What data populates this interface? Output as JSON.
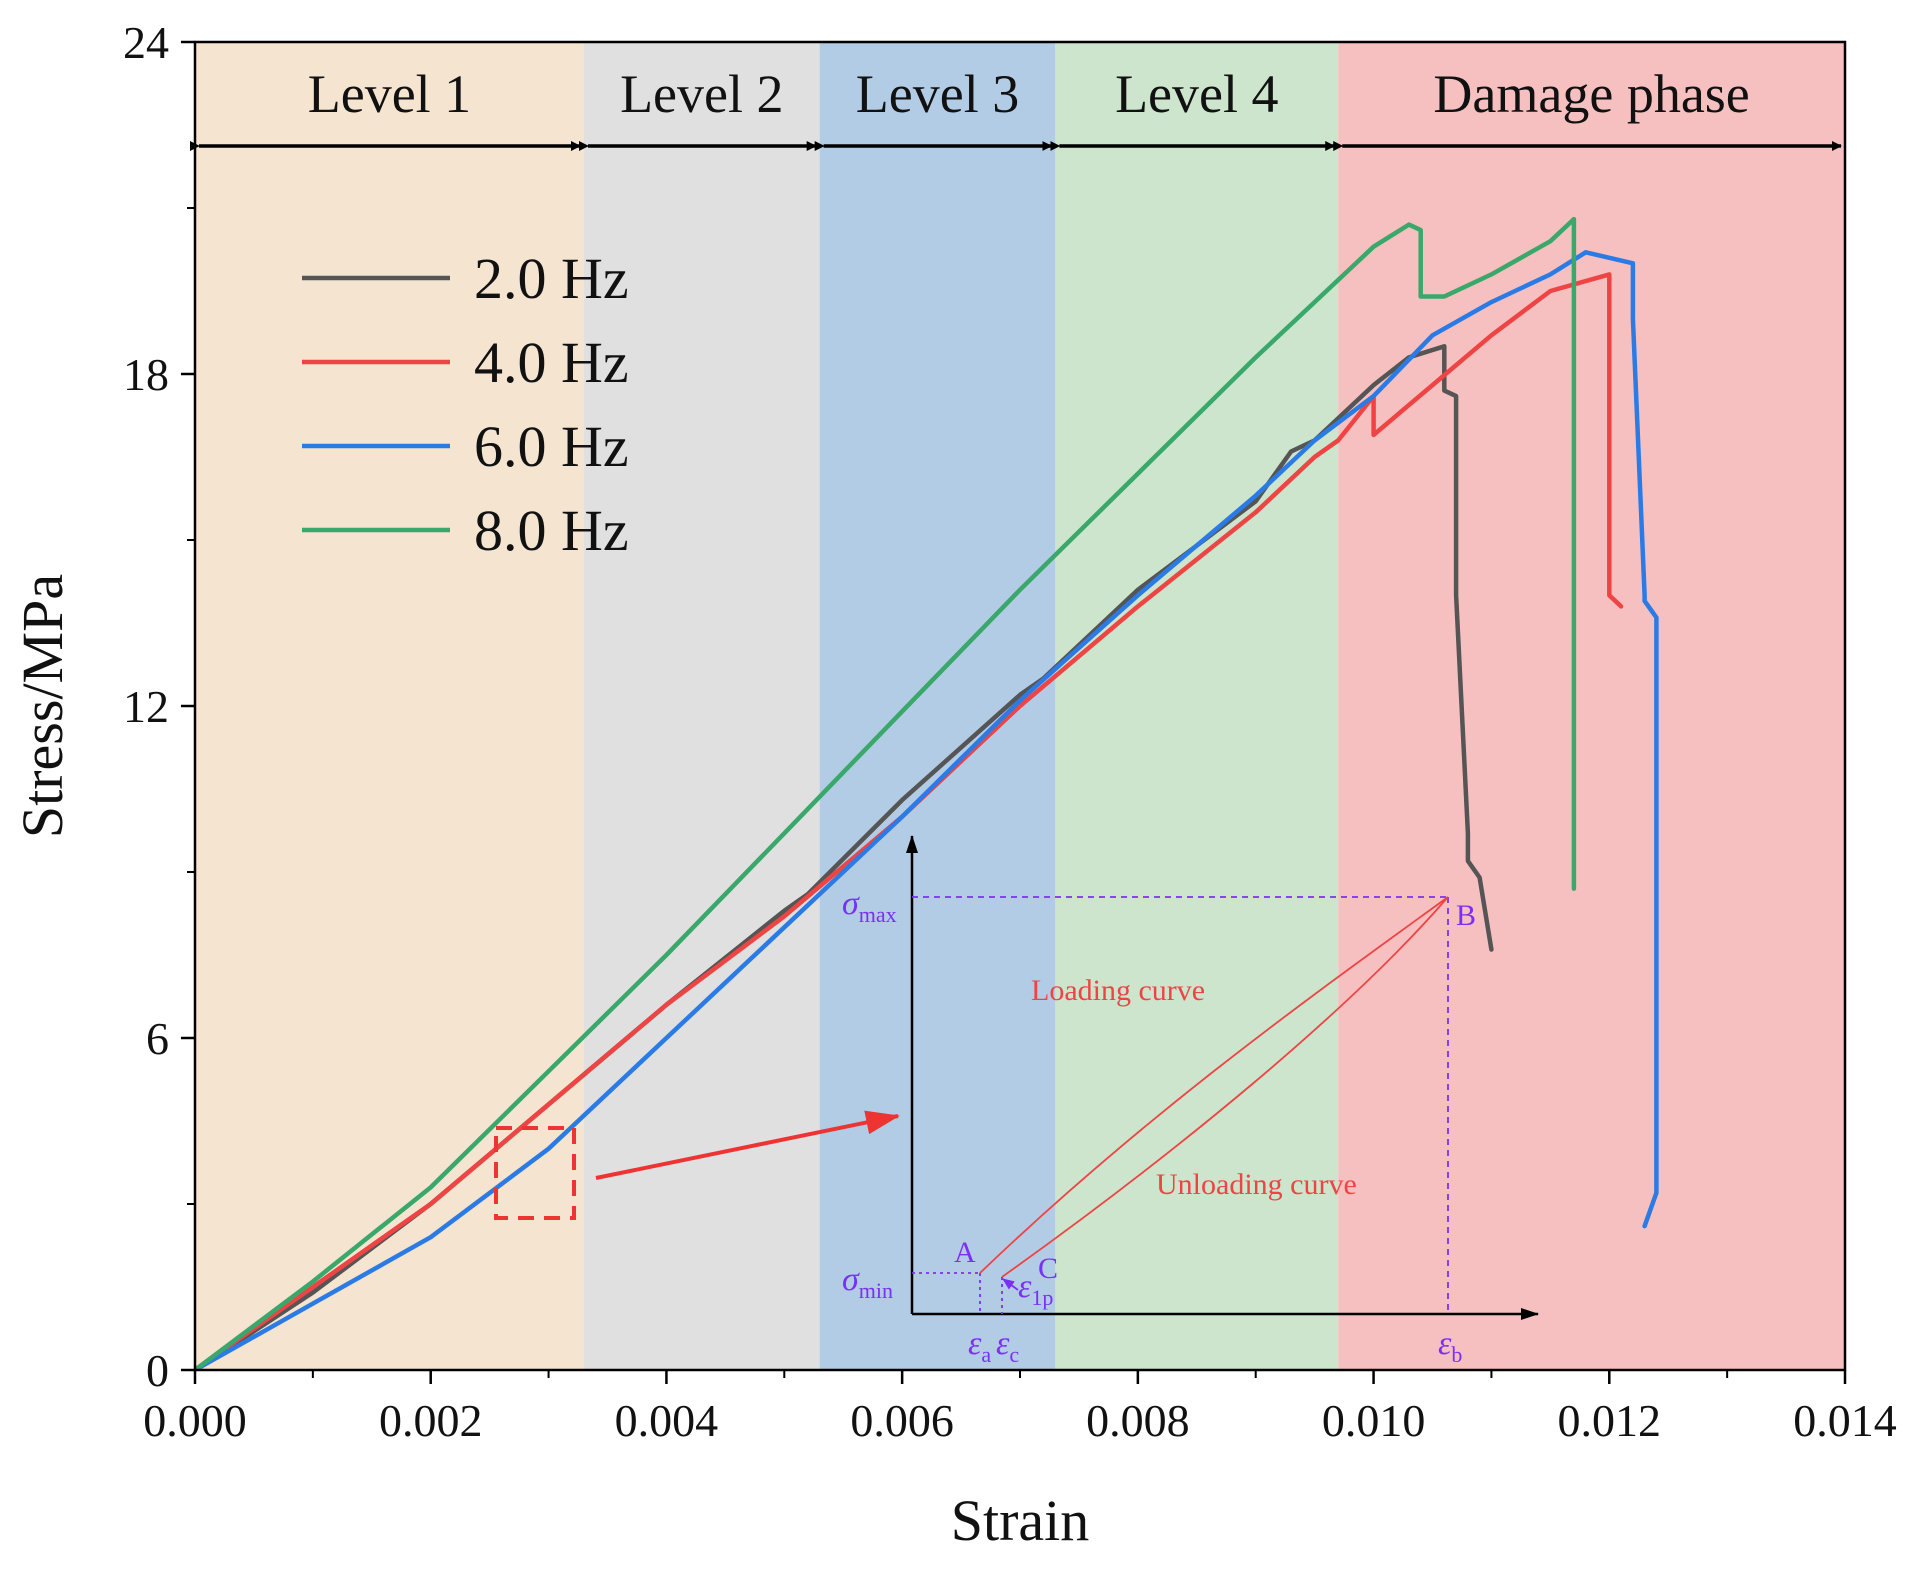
{
  "chart_data": {
    "type": "line",
    "title": "",
    "xlabel": "Strain",
    "ylabel": "Stress/MPa",
    "xlim": [
      0,
      0.014
    ],
    "ylim": [
      0,
      24
    ],
    "xticks": [
      "0.000",
      "0.002",
      "0.004",
      "0.006",
      "0.008",
      "0.010",
      "0.012",
      "0.014"
    ],
    "yticks": [
      "0",
      "6",
      "12",
      "18",
      "24"
    ],
    "xtick_values": [
      0,
      0.002,
      0.004,
      0.006,
      0.008,
      0.01,
      0.012,
      0.014
    ],
    "ytick_values": [
      0,
      6,
      12,
      18,
      24
    ],
    "grid": false,
    "legend_position": "top-left",
    "phases": [
      {
        "name": "Level 1",
        "start": 0.0,
        "end": 0.0033,
        "color": "#f5e4cf"
      },
      {
        "name": "Level 2",
        "start": 0.0033,
        "end": 0.0053,
        "color": "#e0e0e0"
      },
      {
        "name": "Level 3",
        "start": 0.0053,
        "end": 0.0073,
        "color": "#b3cce6"
      },
      {
        "name": "Level 4",
        "start": 0.0073,
        "end": 0.0097,
        "color": "#cce5cc"
      },
      {
        "name": "Damage phase",
        "start": 0.0097,
        "end": 0.014,
        "color": "#f7c0c0"
      }
    ],
    "series": [
      {
        "name": "2.0 Hz",
        "color": "#555555",
        "x": [
          0,
          0.001,
          0.002,
          0.003,
          0.004,
          0.005,
          0.0052,
          0.006,
          0.007,
          0.0072,
          0.008,
          0.009,
          0.0093,
          0.0095,
          0.01,
          0.0103,
          0.0106,
          0.0106,
          0.0107,
          0.0107,
          0.0108,
          0.0108,
          0.0109,
          0.011
        ],
        "y": [
          0,
          1.4,
          3.0,
          4.8,
          6.6,
          8.3,
          8.6,
          10.3,
          12.2,
          12.5,
          14.1,
          15.7,
          16.6,
          16.8,
          17.8,
          18.3,
          18.5,
          17.7,
          17.6,
          14.0,
          9.7,
          9.2,
          8.9,
          7.6
        ]
      },
      {
        "name": "4.0 Hz",
        "color": "#ee4444",
        "x": [
          0,
          0.001,
          0.002,
          0.003,
          0.004,
          0.005,
          0.006,
          0.007,
          0.008,
          0.009,
          0.0095,
          0.0097,
          0.01,
          0.01,
          0.0105,
          0.011,
          0.0115,
          0.012,
          0.012,
          0.0121
        ],
        "y": [
          0,
          1.5,
          3.0,
          4.8,
          6.6,
          8.2,
          10.0,
          12.0,
          13.8,
          15.5,
          16.5,
          16.8,
          17.6,
          16.9,
          17.8,
          18.7,
          19.5,
          19.8,
          14.0,
          13.8
        ]
      },
      {
        "name": "6.0 Hz",
        "color": "#2b7be6",
        "x": [
          0,
          0.001,
          0.002,
          0.003,
          0.004,
          0.005,
          0.006,
          0.007,
          0.008,
          0.009,
          0.0095,
          0.01,
          0.0105,
          0.011,
          0.0115,
          0.0118,
          0.012,
          0.0122,
          0.0122,
          0.0123,
          0.0123,
          0.0124,
          0.0124,
          0.0124,
          0.0123
        ],
        "y": [
          0,
          1.2,
          2.4,
          4.0,
          6.0,
          8.0,
          10.0,
          12.1,
          14.0,
          15.8,
          16.8,
          17.6,
          18.7,
          19.3,
          19.8,
          20.2,
          20.1,
          20.0,
          19.0,
          14.0,
          13.9,
          13.6,
          7.0,
          3.2,
          2.6
        ]
      },
      {
        "name": "8.0 Hz",
        "color": "#3aa86b",
        "x": [
          0,
          0.001,
          0.002,
          0.003,
          0.004,
          0.005,
          0.006,
          0.007,
          0.008,
          0.009,
          0.0095,
          0.01,
          0.0103,
          0.0104,
          0.0104,
          0.0106,
          0.011,
          0.0115,
          0.0117,
          0.0117,
          0.0117
        ],
        "y": [
          0,
          1.6,
          3.3,
          5.4,
          7.5,
          9.7,
          11.9,
          14.1,
          16.2,
          18.3,
          19.3,
          20.3,
          20.7,
          20.6,
          19.4,
          19.4,
          19.8,
          20.4,
          20.8,
          15.0,
          8.7
        ]
      }
    ],
    "annotations": {
      "loading_curve": "Loading curve",
      "unloading_curve": "Unloading curve",
      "point_a": "A",
      "point_b": "B",
      "point_c": "C",
      "sigma_symbol": "σ",
      "sigma_max_sub": "max",
      "sigma_min_sub": "min",
      "epsilon_symbol": "ε",
      "eps_a_sub": "a",
      "eps_c_sub": "c",
      "eps_b_sub": "b",
      "eps_1p_sub": "1p"
    }
  }
}
